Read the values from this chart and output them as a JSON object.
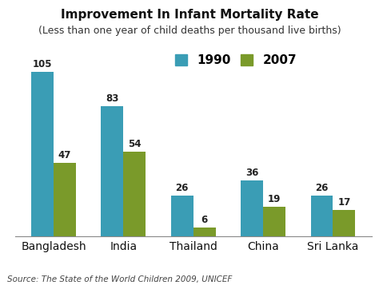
{
  "title": "Improvement In Infant Mortality Rate",
  "subtitle": "(Less than one year of child deaths per thousand live births)",
  "categories": [
    "Bangladesh",
    "India",
    "Thailand",
    "China",
    "Sri Lanka"
  ],
  "values_1990": [
    105,
    83,
    26,
    36,
    26
  ],
  "values_2007": [
    47,
    54,
    6,
    19,
    17
  ],
  "color_1990": "#3a9db5",
  "color_2007": "#7a9a2a",
  "legend_labels": [
    "1990",
    "2007"
  ],
  "source_text": "Source: The State of the World Children 2009, UNICEF",
  "ylim": [
    0,
    120
  ],
  "bar_width": 0.32,
  "title_fontsize": 11,
  "subtitle_fontsize": 9,
  "label_fontsize": 8.5,
  "tick_fontsize": 10,
  "source_fontsize": 7.5,
  "background_color": "#ffffff"
}
